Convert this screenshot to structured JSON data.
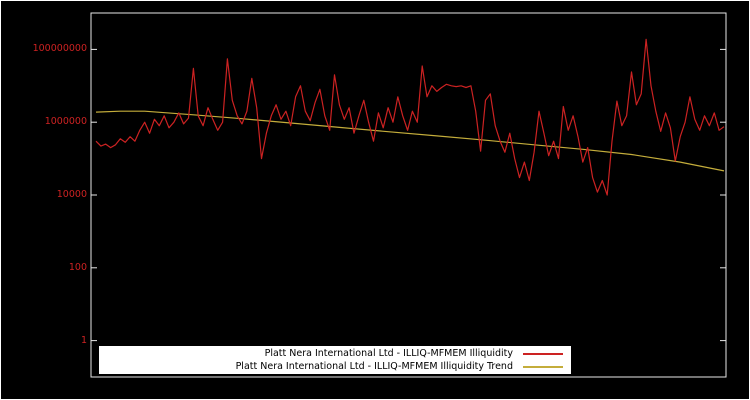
{
  "figure": {
    "background_color": "#000000",
    "frame_color": "#e8e8e8",
    "outer_border_color": "#ffffff"
  },
  "chart_data": {
    "type": "line",
    "title": "",
    "xlabel": "",
    "ylabel": "",
    "x_axis": {
      "tick_labels": []
    },
    "y_axis": {
      "scale": "log",
      "range": [
        0.1,
        1000000000
      ],
      "label_color": "#cc2222",
      "ticks": [
        {
          "label": "100000000",
          "value": 100000000
        },
        {
          "label": "1000000",
          "value": 1000000
        },
        {
          "label": "10000",
          "value": 10000
        },
        {
          "label": "100",
          "value": 100
        },
        {
          "label": "1",
          "value": 1
        }
      ]
    },
    "legend_position": "bottom-center",
    "series": [
      {
        "name": "Platt Nera International Ltd - ILLIQ-MFMEM Illiquidity",
        "color": "#cc2222",
        "values": [
          300000.0,
          220000.0,
          250000.0,
          200000.0,
          240000.0,
          350000.0,
          280000.0,
          400000.0,
          300000.0,
          600000.0,
          1000000.0,
          500000.0,
          1200000.0,
          800000.0,
          1500000.0,
          700000.0,
          1000000.0,
          1800000.0,
          900000.0,
          1300000.0,
          30000000.0,
          1500000.0,
          800000.0,
          2500000.0,
          1200000.0,
          600000.0,
          1000000.0,
          55000000.0,
          4000000.0,
          1500000.0,
          900000.0,
          2000000.0,
          16000000.0,
          2500000.0,
          100000.0,
          500000.0,
          1500000.0,
          3000000.0,
          1200000.0,
          2000000.0,
          800000.0,
          5000000.0,
          10000000.0,
          2000000.0,
          1100000.0,
          3500000.0,
          8000000.0,
          1500000.0,
          600000.0,
          20000000.0,
          3000000.0,
          1200000.0,
          2500000.0,
          500000.0,
          1500000.0,
          4000000.0,
          1000000.0,
          300000.0,
          1800000.0,
          700000.0,
          2500000.0,
          1000000.0,
          5000000.0,
          1500000.0,
          600000.0,
          2000000.0,
          1000000.0,
          35000000.0,
          5000000.0,
          10000000.0,
          7000000.0,
          9000000.0,
          11000000.0,
          10000000.0,
          9500000.0,
          10000000.0,
          9000000.0,
          10000000.0,
          2000000.0,
          160000.0,
          4000000.0,
          6000000.0,
          800000.0,
          300000.0,
          150000.0,
          500000.0,
          100000.0,
          30000.0,
          80000.0,
          25000.0,
          150000.0,
          2000000.0,
          500000.0,
          120000.0,
          300000.0,
          100000.0,
          2700000.0,
          600000.0,
          1500000.0,
          400000.0,
          80000.0,
          200000.0,
          30000.0,
          12000.0,
          25000.0,
          10000.0,
          300000.0,
          3800000.0,
          800000.0,
          1500000.0,
          24000000.0,
          3000000.0,
          6000000.0,
          190000000.0,
          10000000.0,
          2000000.0,
          560000.0,
          1800000.0,
          700000.0,
          86000.0,
          400000.0,
          1000000.0,
          5000000.0,
          1200000.0,
          600000.0,
          1500000.0,
          800000.0,
          1800000.0,
          600000.0,
          750000.0
        ]
      },
      {
        "name": "Platt Nera International Ltd - ILLIQ-MFMEM Illiquidity Trend",
        "color": "#c4ad3b",
        "x_index": [
          0,
          5,
          10,
          20,
          30,
          40,
          50,
          60,
          70,
          80,
          90,
          100,
          110,
          120,
          129
        ],
        "values": [
          1900000.0,
          2000000.0,
          2000000.0,
          1600000.0,
          1250000.0,
          950000.0,
          720000.0,
          550000.0,
          420000.0,
          320000.0,
          240000.0,
          180000.0,
          130000.0,
          80000.0,
          46000.0
        ]
      }
    ]
  }
}
